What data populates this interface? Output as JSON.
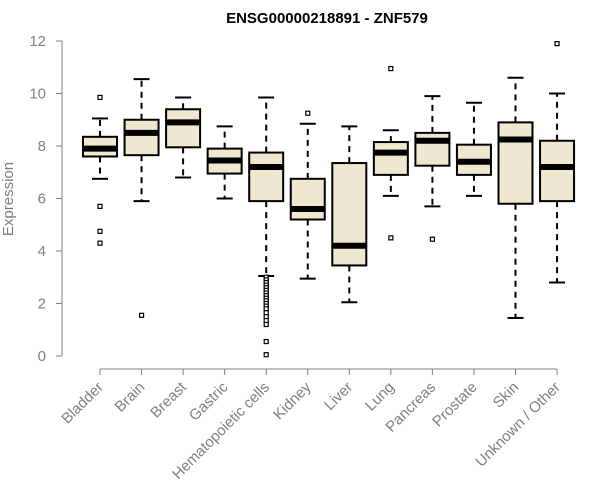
{
  "chart_data": {
    "type": "boxplot",
    "title": "ENSG00000218891 - ZNF579",
    "ylabel": "Expression",
    "xlabel": "",
    "ylim": [
      0,
      12
    ],
    "yticks": [
      0,
      2,
      4,
      6,
      8,
      10,
      12
    ],
    "colors": {
      "box_fill": "#EEE8D0",
      "stroke": "#000000",
      "axis": "#808080"
    },
    "grid": false,
    "categories": [
      "Bladder",
      "Brain",
      "Breast",
      "Gastric",
      "Hematopoietic cells",
      "Kidney",
      "Liver",
      "Lung",
      "Pancreas",
      "Prostate",
      "Skin",
      "Unknown / Other"
    ],
    "boxes": [
      {
        "category": "Bladder",
        "whisker_low": 6.75,
        "q1": 7.6,
        "median": 7.9,
        "q3": 8.35,
        "whisker_high": 9.05,
        "outliers": [
          9.85,
          5.7,
          4.75,
          4.3
        ]
      },
      {
        "category": "Brain",
        "whisker_low": 5.9,
        "q1": 7.65,
        "median": 8.5,
        "q3": 9.0,
        "whisker_high": 10.55,
        "outliers": [
          1.55
        ]
      },
      {
        "category": "Breast",
        "whisker_low": 6.8,
        "q1": 7.95,
        "median": 8.9,
        "q3": 9.4,
        "whisker_high": 9.85,
        "outliers": []
      },
      {
        "category": "Gastric",
        "whisker_low": 6.0,
        "q1": 6.95,
        "median": 7.45,
        "q3": 7.9,
        "whisker_high": 8.75,
        "outliers": []
      },
      {
        "category": "Hematopoietic cells",
        "whisker_low": 3.05,
        "q1": 5.9,
        "median": 7.2,
        "q3": 7.75,
        "whisker_high": 9.85,
        "outliers": [
          3.0,
          2.9,
          2.8,
          2.7,
          2.6,
          2.5,
          2.4,
          2.3,
          2.2,
          2.1,
          2.0,
          1.9,
          1.8,
          1.65,
          1.5,
          1.35,
          1.2,
          0.55,
          0.05
        ]
      },
      {
        "category": "Kidney",
        "whisker_low": 2.95,
        "q1": 5.2,
        "median": 5.6,
        "q3": 6.75,
        "whisker_high": 8.85,
        "outliers": [
          9.25
        ]
      },
      {
        "category": "Liver",
        "whisker_low": 2.05,
        "q1": 3.45,
        "median": 4.2,
        "q3": 7.35,
        "whisker_high": 8.75,
        "outliers": []
      },
      {
        "category": "Lung",
        "whisker_low": 6.1,
        "q1": 6.9,
        "median": 7.75,
        "q3": 8.15,
        "whisker_high": 8.6,
        "outliers": [
          10.95,
          4.5
        ]
      },
      {
        "category": "Pancreas",
        "whisker_low": 5.7,
        "q1": 7.25,
        "median": 8.2,
        "q3": 8.5,
        "whisker_high": 9.9,
        "outliers": [
          4.45
        ]
      },
      {
        "category": "Prostate",
        "whisker_low": 6.1,
        "q1": 6.9,
        "median": 7.4,
        "q3": 8.05,
        "whisker_high": 9.65,
        "outliers": []
      },
      {
        "category": "Skin",
        "whisker_low": 1.45,
        "q1": 5.8,
        "median": 8.25,
        "q3": 8.9,
        "whisker_high": 10.6,
        "outliers": []
      },
      {
        "category": "Unknown / Other",
        "whisker_low": 2.8,
        "q1": 5.9,
        "median": 7.2,
        "q3": 8.2,
        "whisker_high": 10.0,
        "outliers": [
          11.9
        ]
      }
    ]
  }
}
